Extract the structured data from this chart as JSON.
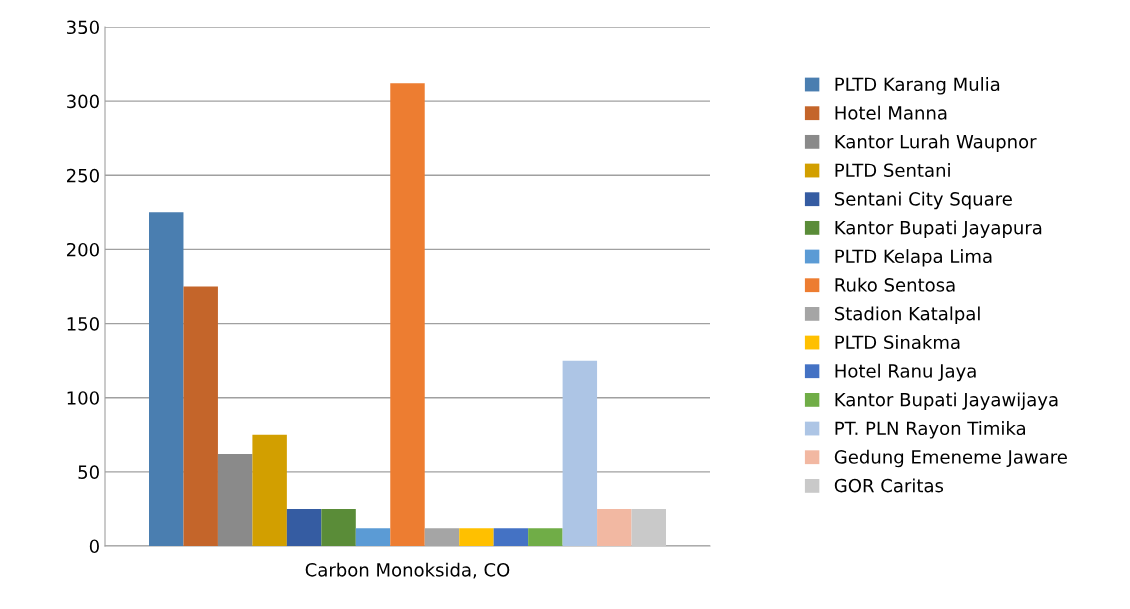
{
  "chart_data": {
    "type": "bar",
    "categories": [
      "Carbon Monoksida, CO"
    ],
    "series": [
      {
        "name": "PLTD Karang Mulia",
        "color": "#4a7eb0",
        "values": [
          225
        ]
      },
      {
        "name": "Hotel Manna",
        "color": "#c4652a",
        "values": [
          175
        ]
      },
      {
        "name": "Kantor Lurah Waupnor",
        "color": "#8a8a8a",
        "values": [
          62
        ]
      },
      {
        "name": "PLTD Sentani",
        "color": "#d29f00",
        "values": [
          75
        ]
      },
      {
        "name": "Sentani City Square",
        "color": "#355ca2",
        "values": [
          25
        ]
      },
      {
        "name": "Kantor Bupati Jayapura",
        "color": "#5a8c38",
        "values": [
          25
        ]
      },
      {
        "name": "PLTD Kelapa Lima",
        "color": "#5b9bd5",
        "values": [
          12
        ]
      },
      {
        "name": "Ruko Sentosa",
        "color": "#ed7d31",
        "values": [
          312
        ]
      },
      {
        "name": "Stadion Katalpal",
        "color": "#a5a5a5",
        "values": [
          12
        ]
      },
      {
        "name": "PLTD Sinakma",
        "color": "#ffc000",
        "values": [
          12
        ]
      },
      {
        "name": "Hotel Ranu Jaya",
        "color": "#4472c4",
        "values": [
          12
        ]
      },
      {
        "name": "Kantor Bupati Jayawijaya",
        "color": "#70ad47",
        "values": [
          12
        ]
      },
      {
        "name": "PT. PLN Rayon Timika",
        "color": "#adc5e5",
        "values": [
          125
        ]
      },
      {
        "name": "Gedung Emeneme Jaware",
        "color": "#f2b8a2",
        "values": [
          25
        ]
      },
      {
        "name": "GOR Caritas",
        "color": "#c9c9c9",
        "values": [
          25
        ]
      }
    ],
    "ylim": [
      0,
      350
    ],
    "yticks": [
      0,
      50,
      100,
      150,
      200,
      250,
      300,
      350
    ],
    "grid": "y",
    "legend": "right"
  }
}
